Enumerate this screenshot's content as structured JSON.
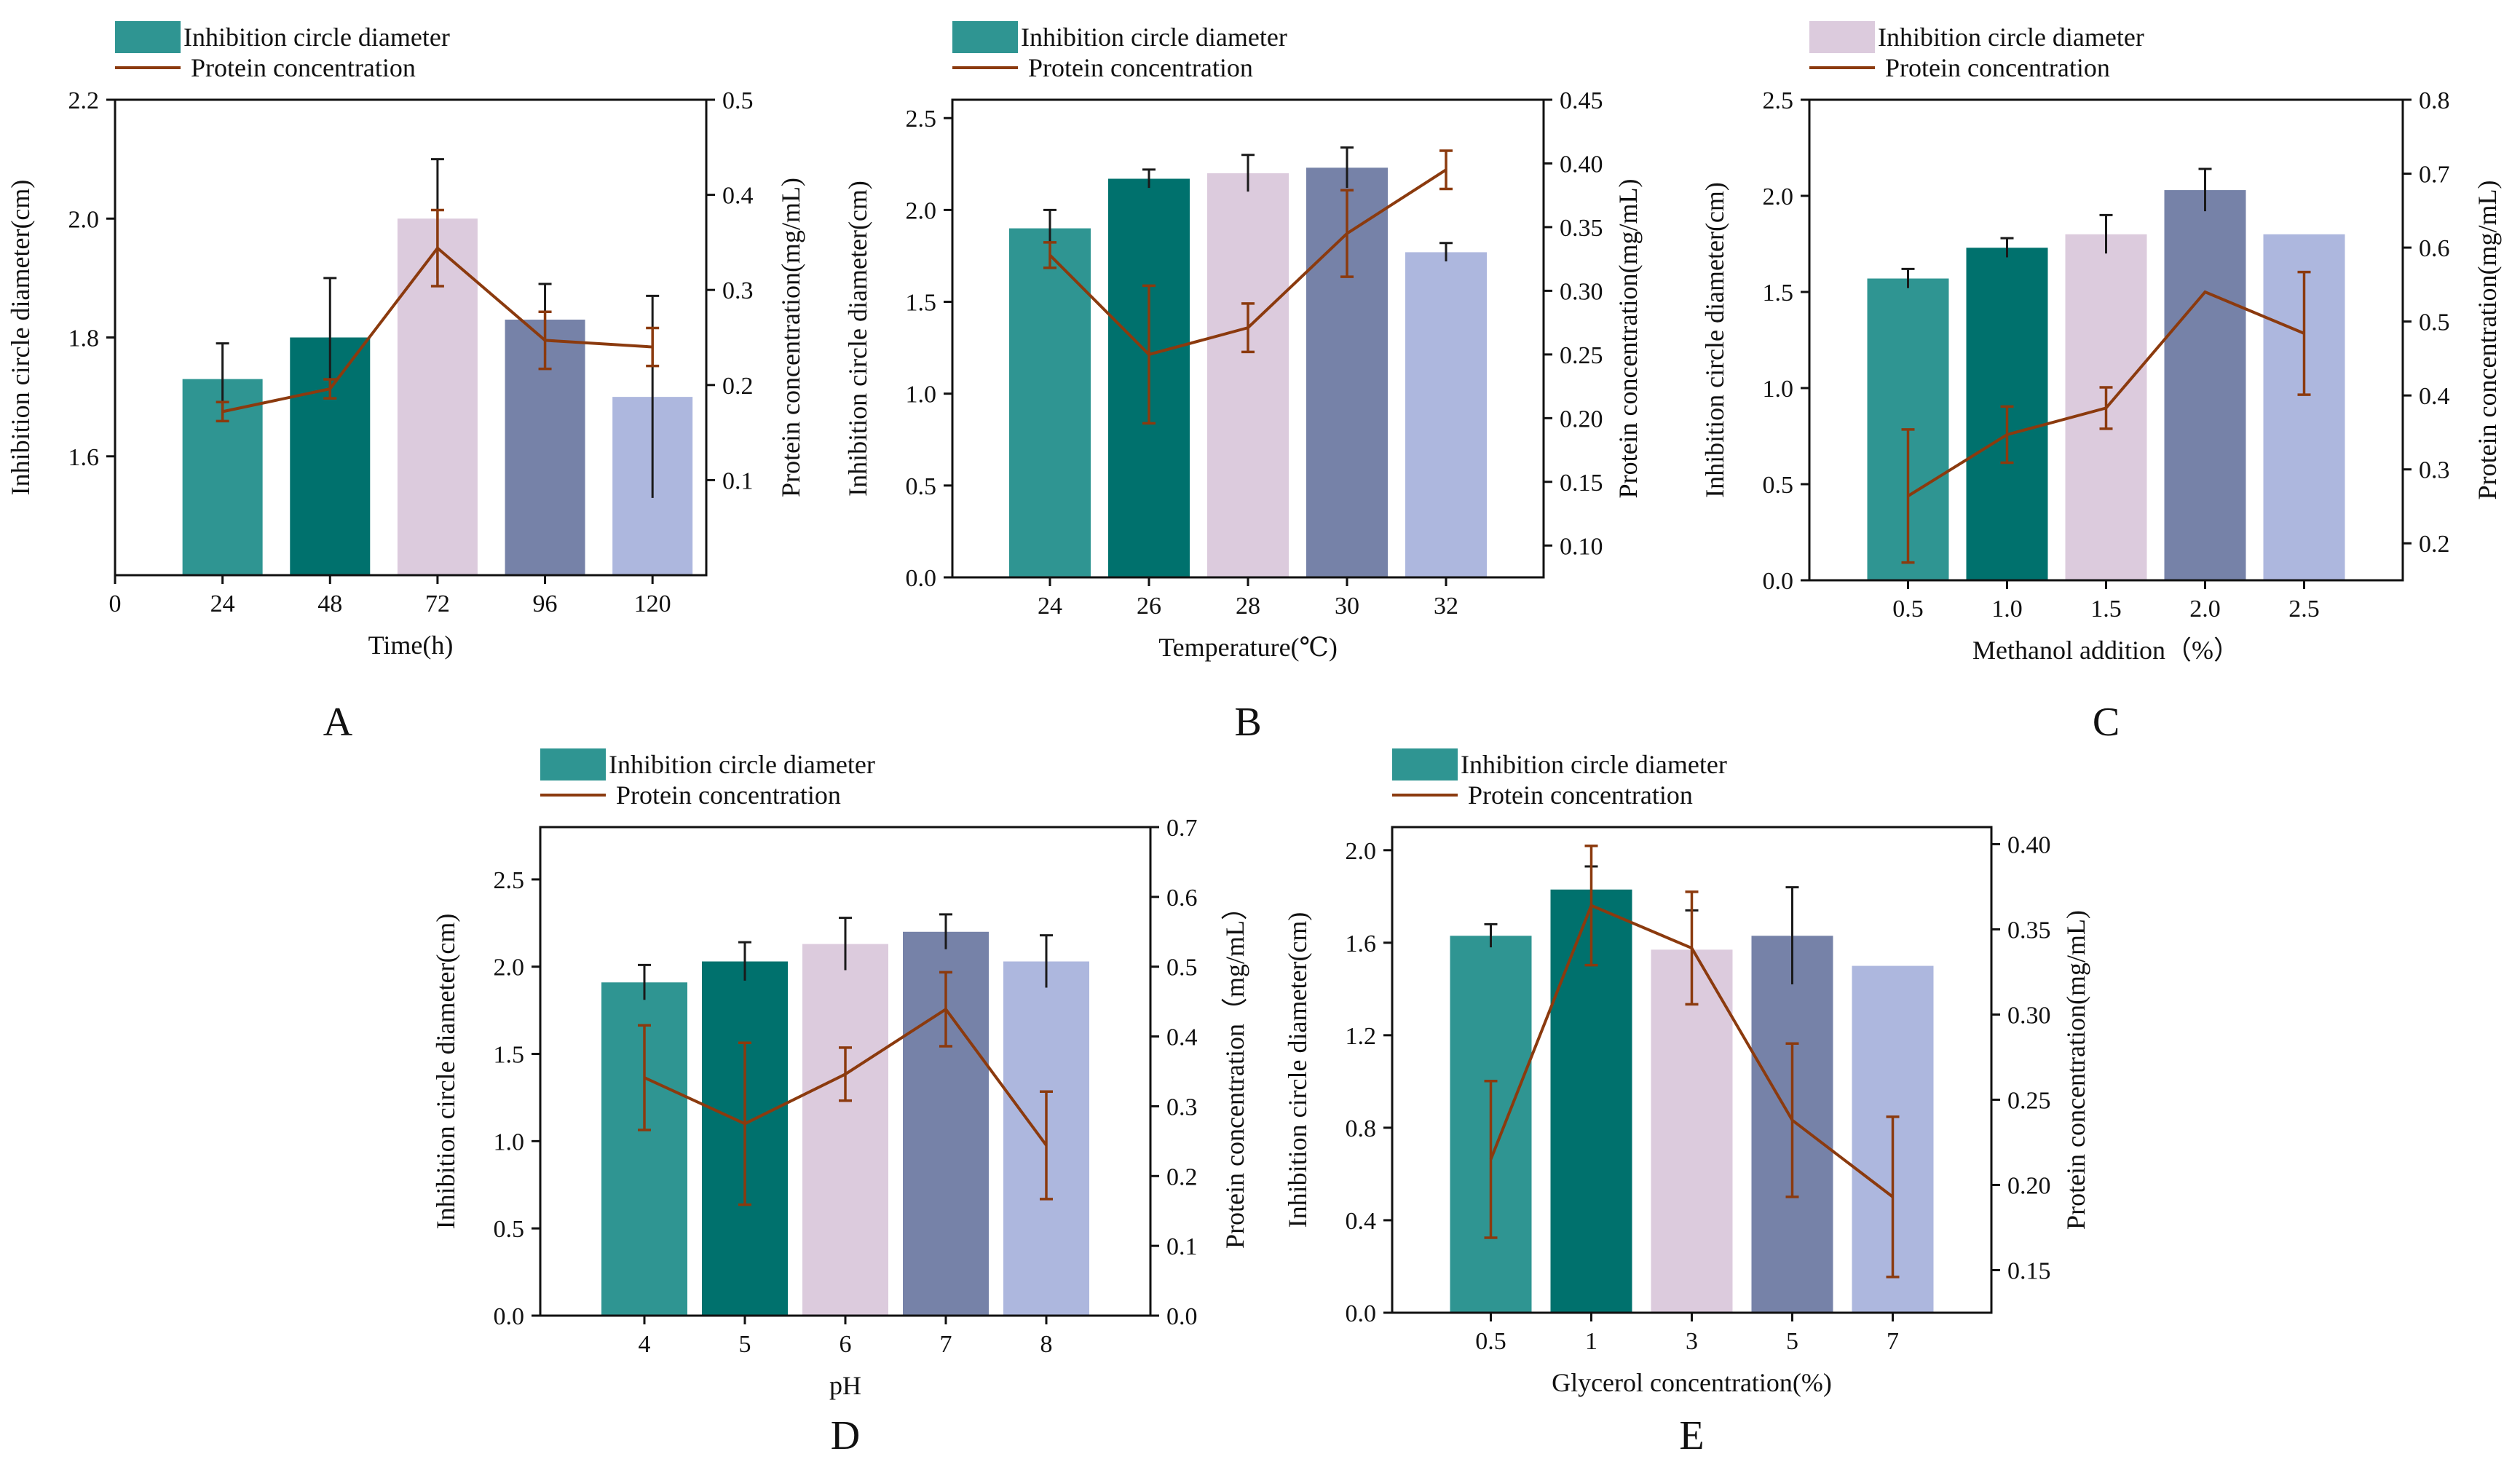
{
  "colors": {
    "bars": [
      "#2f9592",
      "#00716d",
      "#dccbdd",
      "#7682a8",
      "#adb7de"
    ],
    "line": "#8b3a0e",
    "axis": "#111111"
  },
  "chart_data": [
    {
      "panel_label": "A",
      "type": "bar",
      "title": "",
      "legend": {
        "bar_label": "Inhibition circle diameter",
        "line_label": "Protein concentration",
        "position": "top-left"
      },
      "xlabel": "Time(h)",
      "ylabel": "Inhibition circle diameter(cm)",
      "y2label": "Protein concentration(mg/mL)",
      "categories": [
        "24",
        "48",
        "72",
        "96",
        "120"
      ],
      "x_positions": [
        24,
        48,
        72,
        96,
        120
      ],
      "xlim": [
        0,
        132
      ],
      "xticks": [
        "0",
        "24",
        "48",
        "72",
        "96",
        "120"
      ],
      "ylim": [
        1.4,
        2.2
      ],
      "yticks": [
        "1.6",
        "1.8",
        "2.0",
        "2.2"
      ],
      "y2lim": [
        0.0,
        0.5
      ],
      "y2ticks": [
        "0.1",
        "0.2",
        "0.3",
        "0.4",
        "0.5"
      ],
      "series": [
        {
          "name": "Inhibition circle diameter",
          "type": "bar",
          "values": [
            1.73,
            1.8,
            2.0,
            1.83,
            1.7
          ],
          "errors": [
            0.06,
            0.1,
            0.1,
            0.06,
            0.17
          ]
        },
        {
          "name": "Protein concentration",
          "type": "line",
          "values": [
            0.172,
            0.196,
            0.344,
            0.247,
            0.24
          ],
          "errors": [
            0.01,
            0.01,
            0.04,
            0.03,
            0.02
          ]
        }
      ]
    },
    {
      "panel_label": "B",
      "type": "bar",
      "title": "",
      "legend": {
        "bar_label": "Inhibition circle diameter",
        "line_label": "Protein concentration",
        "position": "top-left"
      },
      "xlabel": "Temperature(℃)",
      "ylabel": "Inhibition circle diameter(cm)",
      "y2label": "Protein concentration(mg/mL)",
      "categories": [
        "24",
        "26",
        "28",
        "30",
        "32"
      ],
      "ylim": [
        0.0,
        2.6
      ],
      "yticks": [
        "0.0",
        "0.5",
        "1.0",
        "1.5",
        "2.0",
        "2.5"
      ],
      "y2lim": [
        0.075,
        0.45
      ],
      "y2ticks": [
        "0.10",
        "0.15",
        "0.20",
        "0.25",
        "0.30",
        "0.35",
        "0.40",
        "0.45"
      ],
      "series": [
        {
          "name": "Inhibition circle diameter",
          "type": "bar",
          "values": [
            1.9,
            2.17,
            2.2,
            2.23,
            1.77
          ],
          "errors": [
            0.1,
            0.05,
            0.1,
            0.11,
            0.05
          ]
        },
        {
          "name": "Protein concentration",
          "type": "line",
          "values": [
            0.328,
            0.25,
            0.271,
            0.345,
            0.395
          ],
          "errors": [
            0.01,
            0.054,
            0.019,
            0.034,
            0.015
          ]
        }
      ]
    },
    {
      "panel_label": "C",
      "type": "bar",
      "title": "",
      "legend": {
        "bar_label": "Inhibition circle diameter",
        "line_label": "Protein concentration",
        "position": "top-left"
      },
      "xlabel": "Methanol addition（%）",
      "ylabel": "Inhibition circle diameter(cm)",
      "y2label": "Protein concentration(mg/mL)",
      "categories": [
        "0.5",
        "1.0",
        "1.5",
        "2.0",
        "2.5"
      ],
      "ylim": [
        0.0,
        2.5
      ],
      "yticks": [
        "0.0",
        "0.5",
        "1.0",
        "1.5",
        "2.0",
        "2.5"
      ],
      "y2lim": [
        0.15,
        0.8
      ],
      "y2ticks": [
        "0.2",
        "0.3",
        "0.4",
        "0.5",
        "0.6",
        "0.7",
        "0.8"
      ],
      "series": [
        {
          "name": "Inhibition circle diameter",
          "type": "bar",
          "values": [
            1.57,
            1.73,
            1.8,
            2.03,
            1.8
          ],
          "errors": [
            0.05,
            0.05,
            0.1,
            0.11,
            0.0
          ]
        },
        {
          "name": "Protein concentration",
          "type": "line",
          "values": [
            0.264,
            0.347,
            0.383,
            0.54,
            0.484
          ],
          "errors": [
            0.09,
            0.038,
            0.028,
            0.0,
            0.083
          ]
        }
      ]
    },
    {
      "panel_label": "D",
      "type": "bar",
      "title": "",
      "legend": {
        "bar_label": "Inhibition circle diameter",
        "line_label": "Protein concentration",
        "position": "top-left"
      },
      "xlabel": "pH",
      "ylabel": "Inhibition circle diameter(cm)",
      "y2label": "Protein concentration（mg/mL）",
      "categories": [
        "4",
        "5",
        "6",
        "7",
        "8"
      ],
      "ylim": [
        0.0,
        2.8
      ],
      "yticks": [
        "0.0",
        "0.5",
        "1.0",
        "1.5",
        "2.0",
        "2.5"
      ],
      "y2lim": [
        0.0,
        0.7
      ],
      "y2ticks": [
        "0.0",
        "0.1",
        "0.2",
        "0.3",
        "0.4",
        "0.5",
        "0.6",
        "0.7"
      ],
      "series": [
        {
          "name": "Inhibition circle diameter",
          "type": "bar",
          "values": [
            1.91,
            2.03,
            2.13,
            2.2,
            2.03
          ],
          "errors": [
            0.1,
            0.11,
            0.15,
            0.1,
            0.15
          ]
        },
        {
          "name": "Protein concentration",
          "type": "line",
          "values": [
            0.341,
            0.275,
            0.346,
            0.439,
            0.244
          ],
          "errors": [
            0.075,
            0.116,
            0.038,
            0.053,
            0.077
          ]
        }
      ]
    },
    {
      "panel_label": "E",
      "type": "bar",
      "title": "",
      "legend": {
        "bar_label": "Inhibition circle diameter",
        "line_label": "Protein concentration",
        "position": "top-left"
      },
      "xlabel": "Glycerol concentration(%)",
      "ylabel": "Inhibition circle diameter(cm)",
      "y2label": "Protein concentration(mg/mL)",
      "categories": [
        "0.5",
        "1",
        "3",
        "5",
        "7"
      ],
      "ylim": [
        0.0,
        2.1
      ],
      "yticks": [
        "0.0",
        "0.4",
        "0.8",
        "1.2",
        "1.6",
        "2.0"
      ],
      "y2lim": [
        0.125,
        0.41
      ],
      "y2ticks": [
        "0.15",
        "0.20",
        "0.25",
        "0.30",
        "0.35",
        "0.40"
      ],
      "series": [
        {
          "name": "Inhibition circle diameter",
          "type": "bar",
          "values": [
            1.63,
            1.83,
            1.57,
            1.63,
            1.5
          ],
          "errors": [
            0.05,
            0.1,
            0.17,
            0.21,
            0.0
          ]
        },
        {
          "name": "Protein concentration",
          "type": "line",
          "values": [
            0.215,
            0.364,
            0.339,
            0.238,
            0.193
          ],
          "errors": [
            0.046,
            0.035,
            0.033,
            0.045,
            0.047
          ]
        }
      ]
    }
  ]
}
